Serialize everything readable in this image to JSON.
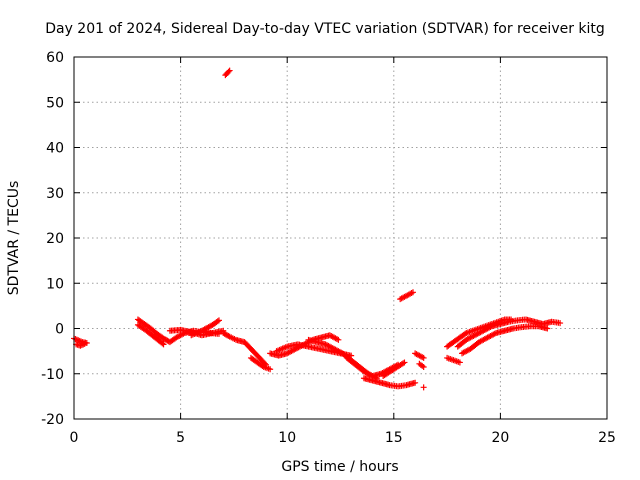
{
  "chart_data": {
    "type": "scatter",
    "title": "Day 201 of 2024, Sidereal Day-to-day VTEC variation (SDTVAR) for receiver kitg",
    "xlabel": "GPS time / hours",
    "ylabel": "SDTVAR / TECUs",
    "xlim": [
      0,
      25
    ],
    "ylim": [
      -20,
      60
    ],
    "xticks": [
      0,
      5,
      10,
      15,
      20,
      25
    ],
    "yticks": [
      -20,
      -10,
      0,
      10,
      20,
      30,
      40,
      50,
      60
    ],
    "grid": true,
    "marker": "+",
    "color": "#ff0000",
    "series": [
      {
        "name": "SDTVAR",
        "segments": [
          {
            "x": [
              0.0,
              0.2,
              0.4,
              0.6
            ],
            "y": [
              -2.2,
              -2.6,
              -3.0,
              -3.2
            ]
          },
          {
            "x": [
              0.1,
              0.3,
              0.5
            ],
            "y": [
              -3.5,
              -3.8,
              -3.4
            ]
          },
          {
            "x": [
              3.0,
              3.3,
              3.6,
              3.9,
              4.2,
              4.5,
              4.8,
              5.2,
              5.6,
              6.0,
              6.4,
              6.8
            ],
            "y": [
              2.0,
              1.0,
              0.0,
              -1.2,
              -2.2,
              -3.0,
              -2.0,
              -1.0,
              -0.5,
              -0.8,
              -1.0,
              -1.2
            ]
          },
          {
            "x": [
              3.0,
              3.4,
              3.8,
              4.2
            ],
            "y": [
              0.8,
              -0.5,
              -2.0,
              -3.5
            ]
          },
          {
            "x": [
              4.5,
              5.0,
              5.5,
              6.0,
              6.5,
              7.0
            ],
            "y": [
              -0.5,
              -0.3,
              -0.8,
              -1.5,
              -1.0,
              -0.5
            ]
          },
          {
            "x": [
              5.5,
              6.0,
              6.5,
              6.8
            ],
            "y": [
              -1.5,
              -0.5,
              0.8,
              1.8
            ]
          },
          {
            "x": [
              7.0,
              7.3,
              7.6,
              8.0,
              8.3,
              8.6,
              9.0
            ],
            "y": [
              -1.0,
              -1.8,
              -2.5,
              -3.0,
              -4.5,
              -6.0,
              -8.0
            ]
          },
          {
            "x": [
              8.3,
              8.6,
              8.9,
              9.2
            ],
            "y": [
              -6.5,
              -7.5,
              -8.5,
              -9.0
            ]
          },
          {
            "x": [
              9.2,
              9.6,
              10.0,
              10.4,
              10.8,
              11.2,
              11.6,
              12.0,
              12.4
            ],
            "y": [
              -5.5,
              -6.0,
              -5.5,
              -4.5,
              -3.5,
              -2.5,
              -2.0,
              -1.5,
              -2.5
            ]
          },
          {
            "x": [
              9.5,
              10.0,
              10.5,
              11.0,
              11.5,
              12.0,
              12.5,
              13.0
            ],
            "y": [
              -5.0,
              -4.0,
              -3.5,
              -4.0,
              -4.5,
              -5.0,
              -5.5,
              -6.0
            ]
          },
          {
            "x": [
              11.0,
              11.4,
              11.8,
              12.2,
              12.6,
              13.0,
              13.4,
              13.8,
              14.2
            ],
            "y": [
              -2.5,
              -3.0,
              -3.5,
              -4.5,
              -5.5,
              -7.0,
              -8.5,
              -10.0,
              -11.0
            ]
          },
          {
            "x": [
              12.8,
              13.2,
              13.6,
              14.0,
              14.4,
              14.8,
              15.2
            ],
            "y": [
              -6.5,
              -8.0,
              -9.5,
              -10.5,
              -10.0,
              -9.0,
              -8.0
            ]
          },
          {
            "x": [
              13.6,
              14.0,
              14.4,
              14.8,
              15.2,
              15.6,
              16.0
            ],
            "y": [
              -11.0,
              -11.5,
              -12.0,
              -12.5,
              -12.8,
              -12.5,
              -12.0
            ]
          },
          {
            "x": [
              14.5,
              15.0,
              15.5
            ],
            "y": [
              -10.5,
              -9.0,
              -7.5
            ]
          },
          {
            "x": [
              16.0,
              16.4
            ],
            "y": [
              -5.5,
              -6.5
            ]
          },
          {
            "x": [
              16.2,
              16.4
            ],
            "y": [
              -7.8,
              -8.5
            ]
          },
          {
            "x": [
              16.4
            ],
            "y": [
              -13.0
            ]
          },
          {
            "x": [
              7.1,
              7.2,
              7.3
            ],
            "y": [
              56.0,
              56.5,
              57.0
            ]
          },
          {
            "x": [
              15.3,
              15.5,
              15.7,
              15.9
            ],
            "y": [
              6.5,
              7.0,
              7.5,
              8.0
            ]
          },
          {
            "x": [
              17.5,
              17.8,
              18.1,
              18.4,
              18.7,
              19.0,
              19.3,
              19.6,
              19.9,
              20.2,
              20.5
            ],
            "y": [
              -4.0,
              -3.0,
              -2.0,
              -1.0,
              -0.5,
              0.0,
              0.5,
              1.0,
              1.5,
              2.0,
              2.0
            ]
          },
          {
            "x": [
              18.0,
              18.4,
              18.8,
              19.2,
              19.6,
              20.0,
              20.4,
              20.8,
              21.2,
              21.6,
              22.0,
              22.4,
              22.8
            ],
            "y": [
              -4.0,
              -2.5,
              -1.5,
              -0.5,
              0.5,
              1.0,
              1.5,
              1.8,
              2.0,
              1.5,
              1.0,
              1.5,
              1.2
            ]
          },
          {
            "x": [
              18.2,
              18.6,
              19.0,
              19.4,
              19.8,
              20.2,
              20.6,
              21.0,
              21.4,
              21.8,
              22.2
            ],
            "y": [
              -5.5,
              -4.5,
              -3.0,
              -2.0,
              -1.0,
              -0.5,
              0.0,
              0.3,
              0.5,
              0.5,
              0.0
            ]
          },
          {
            "x": [
              17.5,
              17.8,
              18.1
            ],
            "y": [
              -6.5,
              -7.0,
              -7.5
            ]
          }
        ]
      }
    ]
  }
}
